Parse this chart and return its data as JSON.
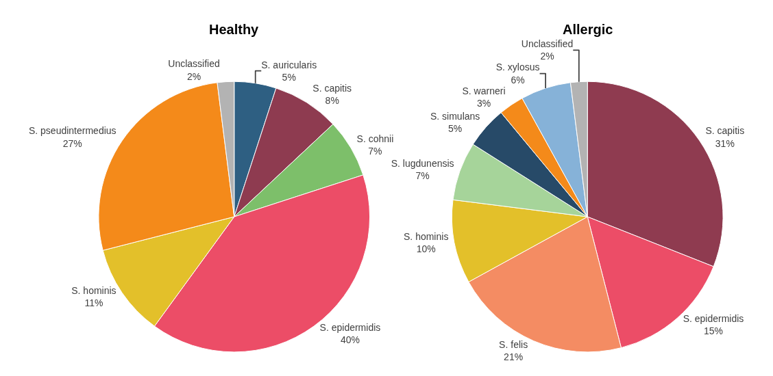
{
  "chart_data": [
    {
      "type": "pie",
      "title": "Healthy",
      "categories": [
        "S. auricularis",
        "S. capitis",
        "S. cohnii",
        "S. epidermidis",
        "S. hominis",
        "S. pseudintermedius",
        "Unclassified"
      ],
      "values": [
        5,
        8,
        7,
        40,
        11,
        27,
        2
      ],
      "value_labels": [
        "5%",
        "8%",
        "7%",
        "40%",
        "11%",
        "27%",
        "2%"
      ],
      "colors": [
        "#2e5f82",
        "#8e3b50",
        "#7dbf6a",
        "#ec4d67",
        "#e3c02a",
        "#f48a1a",
        "#b3b3b3"
      ]
    },
    {
      "type": "pie",
      "title": "Allergic",
      "categories": [
        "S. capitis",
        "S. epidermidis",
        "S. felis",
        "S. hominis",
        "S. lugdunensis",
        "S. simulans",
        "S. warneri",
        "S. xylosus",
        "Unclassified"
      ],
      "values": [
        31,
        15,
        21,
        10,
        7,
        5,
        3,
        6,
        2
      ],
      "value_labels": [
        "31%",
        "15%",
        "21%",
        "10%",
        "7%",
        "5%",
        "3%",
        "6%",
        "2%"
      ],
      "colors": [
        "#8f3b50",
        "#ec4d67",
        "#f48c63",
        "#e3c02a",
        "#a6d49a",
        "#274a68",
        "#f48a1a",
        "#86b2d8",
        "#b3b3b3"
      ]
    }
  ]
}
